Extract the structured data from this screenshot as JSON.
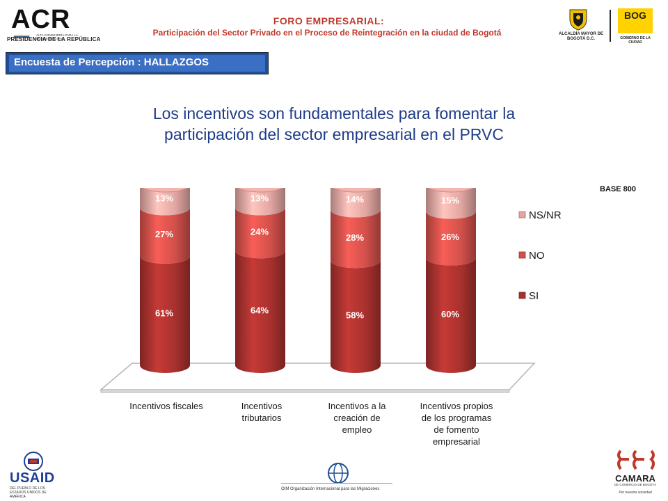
{
  "header": {
    "acr_logo_text": "ACR",
    "acr_sub": "ALTA CONSEJERÍA PARA LA REINTEGRACIÓN",
    "presidencia": "PRESIDENCIA DE LA REPÚBLICA",
    "foro_title": "FORO EMPRESARIAL:",
    "foro_subtitle": "Participación del Sector Privado en el Proceso de Reintegración en la ciudad de Bogotá",
    "alcaldia": "ALCALDÍA MAYOR DE BOGOTÁ D.C.",
    "bog_logo": "BOG",
    "bog_sub": "GOBIERNO DE LA CIUDAD"
  },
  "section_label": "Encuesta de Percepción : HALLAZGOS",
  "main_title_line1": "Los incentivos son fundamentales para fomentar la",
  "main_title_line2": "participación del sector empresarial en el PRVC",
  "base_label": "BASE 800",
  "colors": {
    "si": "#a8312e",
    "no": "#d2504a",
    "nsnr": "#e3a7a2",
    "title": "#1f3c88",
    "header_red": "#c0392b",
    "banner": "#2d5fb4"
  },
  "chart_data": {
    "type": "bar",
    "stacked": true,
    "categories": [
      "Incentivos fiscales",
      "Incentivos tributarios",
      "Incentivos a la creación de empleo",
      "Incentivos propios de los programas de fomento empresarial"
    ],
    "category_lines": [
      [
        "Incentivos fiscales"
      ],
      [
        "Incentivos",
        "tributarios"
      ],
      [
        "Incentivos a la",
        "creación de",
        "empleo"
      ],
      [
        "Incentivos propios",
        "de los programas",
        "de fomento",
        "empresarial"
      ]
    ],
    "series": [
      {
        "name": "SI",
        "values": [
          61,
          64,
          58,
          60
        ],
        "labels": [
          "61%",
          "64%",
          "58%",
          "60%"
        ]
      },
      {
        "name": "NO",
        "values": [
          27,
          24,
          28,
          26
        ],
        "labels": [
          "27%",
          "24%",
          "28%",
          "26%"
        ]
      },
      {
        "name": "NS/NR",
        "values": [
          13,
          13,
          14,
          15
        ],
        "labels": [
          "13%",
          "13%",
          "14%",
          "15%"
        ]
      }
    ],
    "legend_order": [
      "NS/NR",
      "NO",
      "SI"
    ],
    "legend_position": "right",
    "ylim": [
      0,
      100
    ]
  },
  "footer": {
    "usaid": "USAID",
    "usaid_sub": "DEL PUEBLO DE LOS ESTADOS UNIDOS DE AMÉRICA",
    "oim": "OIM Organización Internacional para las Migraciones",
    "camara": "CAMARA",
    "camara_sub": "DE COMERCIO DE BOGOTÁ",
    "camara_slogan": "Por nuestra sociedad"
  }
}
